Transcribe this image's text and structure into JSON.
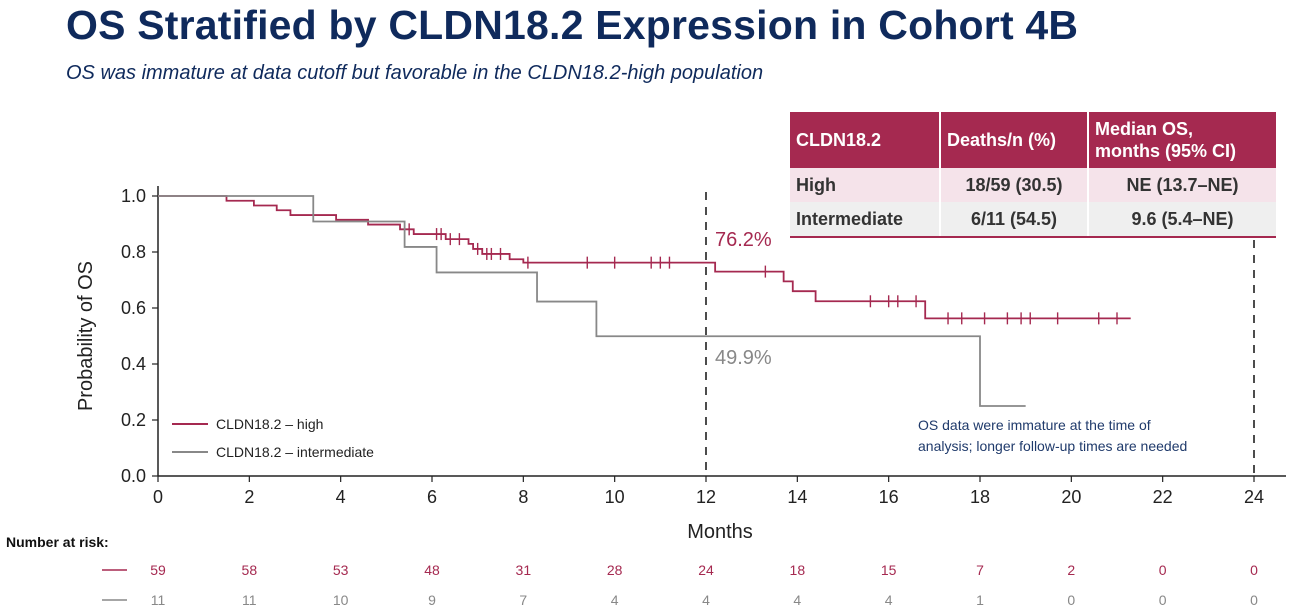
{
  "header": {
    "title": "OS Stratified by CLDN18.2 Expression in Cohort 4B",
    "subtitle": "OS was immature at data cutoff but favorable in the CLDN18.2-high population"
  },
  "colors": {
    "title": "#0f2a5c",
    "high": "#a52950",
    "intermediate": "#888888",
    "table_header": "#a52950"
  },
  "chart_data": {
    "type": "line",
    "subtype": "kaplan-meier",
    "xlabel": "Months",
    "ylabel": "Probability of OS",
    "xlim": [
      0,
      24
    ],
    "ylim": [
      0,
      1.0
    ],
    "x_ticks": [
      0,
      2,
      4,
      6,
      8,
      10,
      12,
      14,
      16,
      18,
      20,
      22,
      24
    ],
    "y_ticks": [
      "0.0",
      "0.2",
      "0.4",
      "0.6",
      "0.8",
      "1.0"
    ],
    "grid": false,
    "legend_position": "bottom-left",
    "series": [
      {
        "name": "CLDN18.2 – high",
        "color": "#a52950",
        "steps": [
          [
            0,
            1.0
          ],
          [
            1.5,
            0.983
          ],
          [
            2.1,
            0.966
          ],
          [
            2.6,
            0.949
          ],
          [
            2.9,
            0.932
          ],
          [
            3.4,
            0.932
          ],
          [
            3.9,
            0.915
          ],
          [
            4.6,
            0.898
          ],
          [
            5.3,
            0.881
          ],
          [
            5.6,
            0.864
          ],
          [
            6.3,
            0.846
          ],
          [
            6.8,
            0.829
          ],
          [
            6.9,
            0.811
          ],
          [
            7.1,
            0.793
          ],
          [
            7.7,
            0.774
          ],
          [
            8.0,
            0.762
          ],
          [
            12.2,
            0.73
          ],
          [
            13.7,
            0.695
          ],
          [
            13.9,
            0.66
          ],
          [
            14.4,
            0.624
          ],
          [
            16.8,
            0.563
          ],
          [
            21.3,
            0.563
          ]
        ],
        "censor": [
          5.5,
          6.1,
          6.2,
          6.4,
          6.6,
          7.0,
          7.2,
          7.3,
          7.5,
          8.1,
          9.4,
          10.0,
          10.8,
          11.0,
          11.2,
          13.3,
          15.6,
          16.0,
          16.2,
          16.6,
          17.3,
          17.6,
          18.1,
          18.6,
          18.9,
          19.1,
          19.7,
          20.6,
          21.0
        ]
      },
      {
        "name": "CLDN18.2 – intermediate",
        "color": "#888888",
        "steps": [
          [
            0,
            1.0
          ],
          [
            3.4,
            0.909
          ],
          [
            5.4,
            0.818
          ],
          [
            6.1,
            0.727
          ],
          [
            8.3,
            0.623
          ],
          [
            9.6,
            0.499
          ],
          [
            18.0,
            0.25
          ],
          [
            19.0,
            0.25
          ]
        ],
        "censor": []
      }
    ],
    "annotations": {
      "landmark_month": 12,
      "end_month": 24,
      "high_at_12": "76.2%",
      "intermediate_at_12": "49.9%",
      "note": "OS data were immature at the time of analysis; longer follow-up times are needed"
    },
    "risk_table": {
      "heading": "Number at risk:",
      "high": [
        "59",
        "58",
        "53",
        "48",
        "31",
        "28",
        "24",
        "18",
        "15",
        "7",
        "2",
        "0",
        "0"
      ],
      "intermediate": [
        "11",
        "11",
        "10",
        "9",
        "7",
        "4",
        "4",
        "4",
        "4",
        "1",
        "0",
        "0",
        "0"
      ]
    }
  },
  "summary_table": {
    "headers": [
      "CLDN18.2",
      "Deaths/n (%)",
      "Median OS,",
      "months (95% CI)"
    ],
    "rows": [
      {
        "group": "High",
        "deaths": "18/59 (30.5)",
        "median": "NE (13.7–NE)"
      },
      {
        "group": "Intermediate",
        "deaths": "6/11 (54.5)",
        "median": "9.6 (5.4–NE)"
      }
    ]
  }
}
